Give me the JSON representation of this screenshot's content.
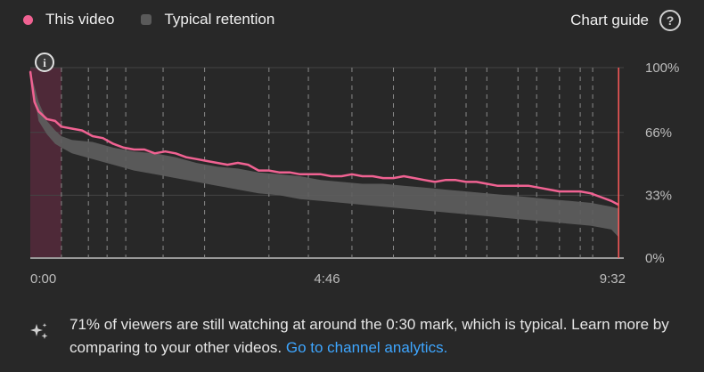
{
  "legend": {
    "this_video": "This video",
    "typical": "Typical retention"
  },
  "chart_guide": {
    "label": "Chart guide",
    "help_glyph": "?"
  },
  "info_glyph": "i",
  "insight": {
    "text": "71% of viewers are still watching at around the 0:30 mark, which is typical. Learn more by comparing to your other videos.",
    "link": "Go to channel analytics."
  },
  "colors": {
    "this_video": "#f06292",
    "typical": "#5a5a5a",
    "marker": "#ff5a5a"
  },
  "chart_data": {
    "type": "line",
    "x_ticks": [
      "0:00",
      "4:46",
      "9:32"
    ],
    "y_ticks": [
      "100%",
      "66%",
      "33%",
      "0%"
    ],
    "ylim": [
      0,
      100
    ],
    "xlim_seconds": [
      0,
      572
    ],
    "current_position_seconds": 567,
    "intro_region_seconds": [
      0,
      30
    ],
    "series": [
      {
        "name": "This video",
        "x": [
          0,
          4,
          8,
          16,
          24,
          30,
          40,
          50,
          60,
          70,
          80,
          90,
          100,
          110,
          120,
          130,
          140,
          150,
          160,
          170,
          180,
          190,
          200,
          210,
          220,
          230,
          240,
          250,
          260,
          270,
          280,
          290,
          300,
          310,
          320,
          330,
          340,
          350,
          360,
          370,
          380,
          390,
          400,
          410,
          420,
          430,
          440,
          450,
          460,
          470,
          480,
          490,
          500,
          510,
          520,
          530,
          540,
          550,
          560,
          567
        ],
        "y": [
          98,
          82,
          77,
          73,
          72,
          69,
          68,
          67,
          64,
          63,
          60,
          58,
          57,
          57,
          55,
          56,
          55,
          53,
          52,
          51,
          50,
          49,
          50,
          49,
          46,
          46,
          45,
          45,
          44,
          44,
          44,
          43,
          43,
          44,
          43,
          43,
          42,
          42,
          43,
          42,
          41,
          40,
          41,
          41,
          40,
          40,
          39,
          38,
          38,
          38,
          38,
          37,
          36,
          35,
          35,
          35,
          34,
          32,
          30,
          28
        ]
      }
    ],
    "typical_band": {
      "name": "Typical retention",
      "x": [
        0,
        8,
        16,
        24,
        30,
        40,
        60,
        80,
        100,
        120,
        140,
        160,
        180,
        200,
        220,
        240,
        260,
        280,
        300,
        320,
        340,
        360,
        380,
        400,
        420,
        440,
        460,
        480,
        500,
        520,
        540,
        560,
        567
      ],
      "upper": [
        98,
        82,
        72,
        67,
        64,
        62,
        61,
        58,
        56,
        55,
        53,
        50,
        48,
        47,
        45,
        44,
        43,
        41,
        40,
        39,
        39,
        38,
        37,
        36,
        35,
        34,
        33,
        32,
        31,
        30,
        29,
        27,
        26
      ],
      "lower": [
        98,
        72,
        65,
        60,
        58,
        55,
        52,
        49,
        46,
        44,
        42,
        40,
        38,
        36,
        34,
        33,
        31,
        30,
        29,
        28,
        27,
        26,
        25,
        24,
        23,
        22,
        21,
        20,
        19,
        18,
        17,
        15,
        11
      ]
    },
    "grid": true
  }
}
